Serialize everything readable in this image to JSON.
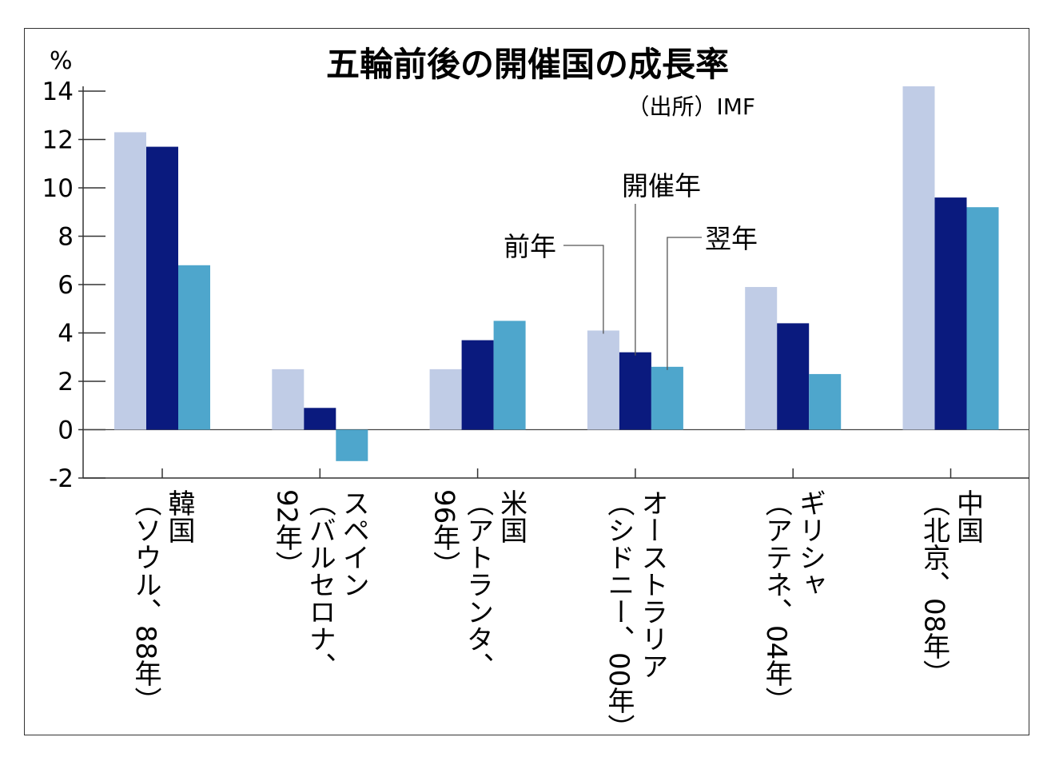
{
  "chart_data": {
    "type": "bar",
    "title": "五輪前後の開催国の成長率",
    "source": "（出所）IMF",
    "unit": "%",
    "ylim": [
      -2,
      14
    ],
    "yticks": [
      14,
      12,
      10,
      8,
      6,
      4,
      2,
      0,
      -2
    ],
    "categories": [
      {
        "lines": [
          "韓国",
          "（ソウル、88年）"
        ]
      },
      {
        "lines": [
          "スペイン",
          "（バルセロナ、",
          "92年）"
        ]
      },
      {
        "lines": [
          "米国",
          "（アトランタ、",
          "96年）"
        ]
      },
      {
        "lines": [
          "オーストラリア",
          "（シドニー、00年）"
        ]
      },
      {
        "lines": [
          "ギリシャ",
          "（アテネ、04年）"
        ]
      },
      {
        "lines": [
          "中国",
          "（北京、08年）"
        ]
      }
    ],
    "series": [
      {
        "name": "前年",
        "color": "#c0cce6",
        "values": [
          12.3,
          2.5,
          2.5,
          4.1,
          5.9,
          14.2
        ]
      },
      {
        "name": "開催年",
        "color": "#0a1a7e",
        "values": [
          11.7,
          0.9,
          3.7,
          3.2,
          4.4,
          9.6
        ]
      },
      {
        "name": "翌年",
        "color": "#4ea6cc",
        "values": [
          6.8,
          -1.3,
          4.5,
          2.6,
          2.3,
          9.2
        ]
      }
    ],
    "grid": false,
    "legend": "annotated-on-bars"
  }
}
